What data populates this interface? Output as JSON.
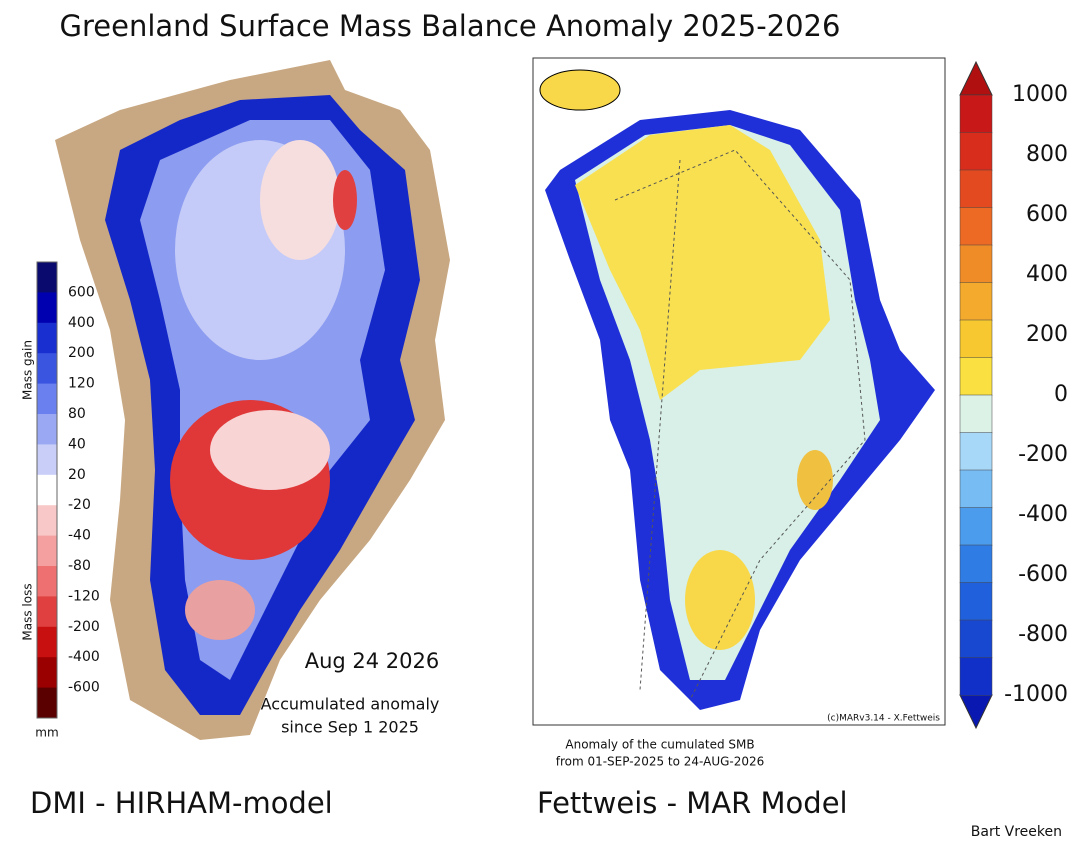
{
  "title": "Greenland Surface Mass Balance Anomaly 2025-2026",
  "left_panel": {
    "colorbar_labels": [
      600,
      400,
      200,
      120,
      80,
      40,
      20,
      -20,
      -40,
      -80,
      -120,
      -200,
      -400,
      -600
    ],
    "gain_label": "Mass gain",
    "loss_label": "Mass loss",
    "unit": "mm",
    "date": "Aug 24 2026",
    "annotation": [
      "Accumulated anomaly",
      "since Sep 1 2025"
    ],
    "caption": "DMI - HIRHAM-model"
  },
  "right_panel": {
    "colorbar_labels": [
      1000,
      800,
      600,
      400,
      200,
      0,
      -200,
      -400,
      -600,
      -800,
      -1000
    ],
    "credit": "(c)MARv3.14 - X.Fettweis",
    "annotation": [
      "Anomaly of the cumulated SMB",
      "from 01-SEP-2025 to 24-AUG-2026"
    ],
    "caption": "Fettweis - MAR Model"
  },
  "author": "Bart Vreeken"
}
